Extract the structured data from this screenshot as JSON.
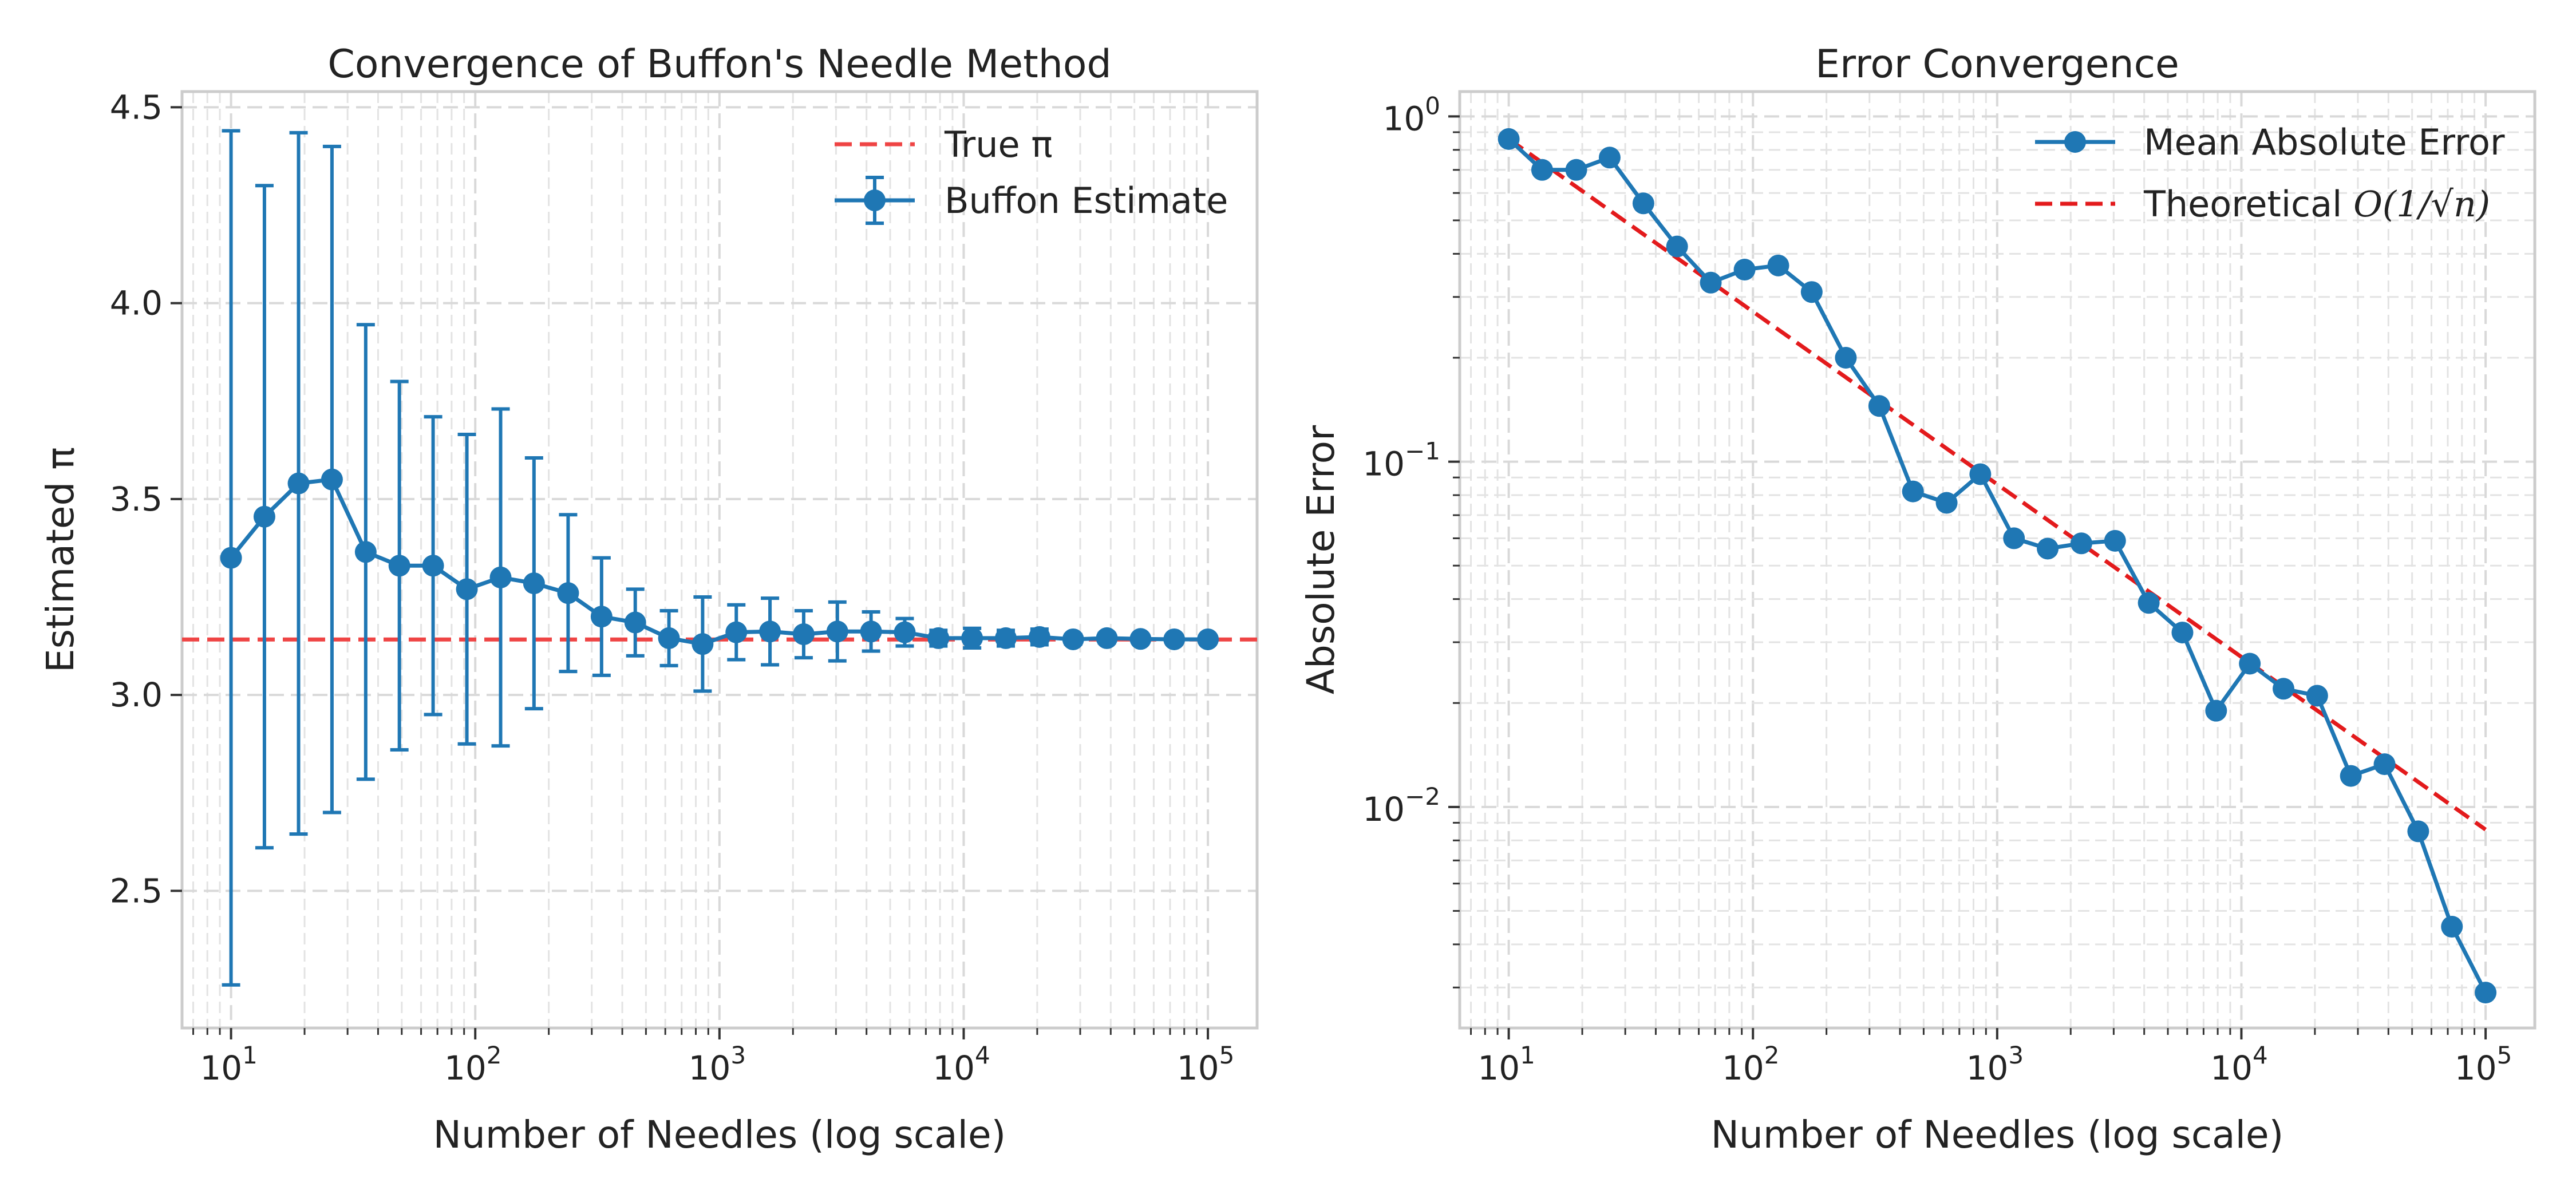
{
  "colors": {
    "series": "#1f77b4",
    "reference": "#e31a1c",
    "true_pi": "#ef4444",
    "grid": "#d9d9d9",
    "frame": "#cccccc"
  },
  "chart_data": [
    {
      "type": "line",
      "title": "Convergence of Buffon's Needle Method",
      "xlabel": "Number of Needles (log scale)",
      "ylabel": "Estimated π",
      "x_scale": "log",
      "xlim": [
        6.3,
        159000
      ],
      "ylim": [
        2.15,
        4.54
      ],
      "x_ticks": [
        {
          "value": 10,
          "base": "10",
          "exp": "1"
        },
        {
          "value": 100,
          "base": "10",
          "exp": "2"
        },
        {
          "value": 1000,
          "base": "10",
          "exp": "3"
        },
        {
          "value": 10000,
          "base": "10",
          "exp": "4"
        },
        {
          "value": 100000,
          "base": "10",
          "exp": "5"
        }
      ],
      "y_ticks": [
        {
          "value": 2.5,
          "label": "2.5"
        },
        {
          "value": 3.0,
          "label": "3.0"
        },
        {
          "value": 3.5,
          "label": "3.5"
        },
        {
          "value": 4.0,
          "label": "4.0"
        },
        {
          "value": 4.5,
          "label": "4.5"
        }
      ],
      "grid": true,
      "legend_position": "top-right",
      "reference_line": {
        "name": "True π",
        "y": 3.14159
      },
      "series": [
        {
          "name": "Buffon Estimate",
          "x": [
            10,
            13.7,
            18.9,
            25.9,
            35.6,
            48.9,
            67.2,
            92.4,
            127,
            174,
            240,
            329,
            452,
            621,
            853,
            1172,
            1610,
            2212,
            3039,
            4175,
            5736,
            7880,
            10826,
            14874,
            20434,
            28072,
            38566,
            52983,
            72790,
            100000
          ],
          "y": [
            3.35,
            3.455,
            3.54,
            3.55,
            3.365,
            3.33,
            3.33,
            3.27,
            3.3,
            3.285,
            3.26,
            3.2,
            3.185,
            3.145,
            3.13,
            3.16,
            3.162,
            3.155,
            3.162,
            3.162,
            3.16,
            3.145,
            3.145,
            3.145,
            3.148,
            3.142,
            3.145,
            3.143,
            3.142,
            3.142
          ],
          "yerr": [
            1.09,
            0.845,
            0.895,
            0.85,
            0.58,
            0.47,
            0.38,
            0.395,
            0.43,
            0.32,
            0.2,
            0.15,
            0.085,
            0.07,
            0.12,
            0.07,
            0.085,
            0.06,
            0.075,
            0.05,
            0.035,
            0.02,
            0.025,
            0.02,
            0.02,
            0.012,
            0.012,
            0.01,
            0.008,
            0.008
          ]
        }
      ]
    },
    {
      "type": "line",
      "title": "Error Convergence",
      "xlabel": "Number of Needles (log scale)",
      "ylabel": "Absolute Error",
      "x_scale": "log",
      "y_scale": "log",
      "xlim": [
        6.3,
        159000
      ],
      "ylim": [
        0.00229,
        1.18
      ],
      "x_ticks": [
        {
          "value": 10,
          "base": "10",
          "exp": "1"
        },
        {
          "value": 100,
          "base": "10",
          "exp": "2"
        },
        {
          "value": 1000,
          "base": "10",
          "exp": "3"
        },
        {
          "value": 10000,
          "base": "10",
          "exp": "4"
        },
        {
          "value": 100000,
          "base": "10",
          "exp": "5"
        }
      ],
      "y_ticks": [
        {
          "value": 1,
          "base": "10",
          "exp": "0"
        },
        {
          "value": 0.1,
          "base": "10",
          "exp": "−1"
        },
        {
          "value": 0.01,
          "base": "10",
          "exp": "−2"
        }
      ],
      "grid": true,
      "legend_position": "top-right",
      "series": [
        {
          "name": "Mean Absolute Error",
          "x": [
            10,
            13.7,
            18.9,
            25.9,
            35.6,
            48.9,
            67.2,
            92.4,
            127,
            174,
            240,
            329,
            452,
            621,
            853,
            1172,
            1610,
            2212,
            3039,
            4175,
            5736,
            7880,
            10826,
            14874,
            20434,
            28072,
            38566,
            52983,
            72790,
            100000
          ],
          "y": [
            0.86,
            0.7,
            0.7,
            0.76,
            0.56,
            0.42,
            0.33,
            0.36,
            0.37,
            0.31,
            0.2,
            0.145,
            0.082,
            0.076,
            0.092,
            0.06,
            0.056,
            0.058,
            0.059,
            0.039,
            0.032,
            0.019,
            0.026,
            0.022,
            0.021,
            0.0123,
            0.0133,
            0.0085,
            0.0045,
            0.0029
          ]
        },
        {
          "name_prefix": "Theoretical ",
          "name_math": "O(1/√n)",
          "x": [
            10,
            100000
          ],
          "y": [
            0.86,
            0.0086
          ]
        }
      ]
    }
  ]
}
